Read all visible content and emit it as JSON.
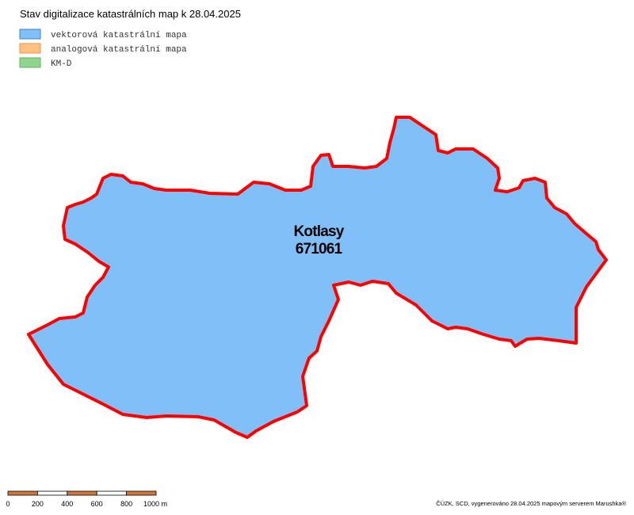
{
  "header": {
    "title": "Stav digitalizace katastrálních map k 28.04.2025"
  },
  "legend": [
    {
      "label": "vektorová katastrální mapa",
      "color": "#80bff7",
      "border": "#3a84d0"
    },
    {
      "label": "analogová katastrální mapa",
      "color": "#ffc080",
      "border": "#f09040"
    },
    {
      "label": "KM-D",
      "color": "#8fd48f",
      "border": "#5ab85a"
    }
  ],
  "region": {
    "name": "Kotlasy",
    "code": "671061",
    "fill": "#80bff7",
    "outline": "#ff0000"
  },
  "scale": {
    "ticks": [
      0,
      200,
      400,
      600,
      800,
      {
        "value": 1000,
        "label": "1000 m"
      }
    ],
    "colors": [
      "#d2773a",
      "#ffffff"
    ]
  },
  "attribution": "ČÚZK, SCD, vygenerováno 28.04.2025 mapovým serverem Marushka®"
}
